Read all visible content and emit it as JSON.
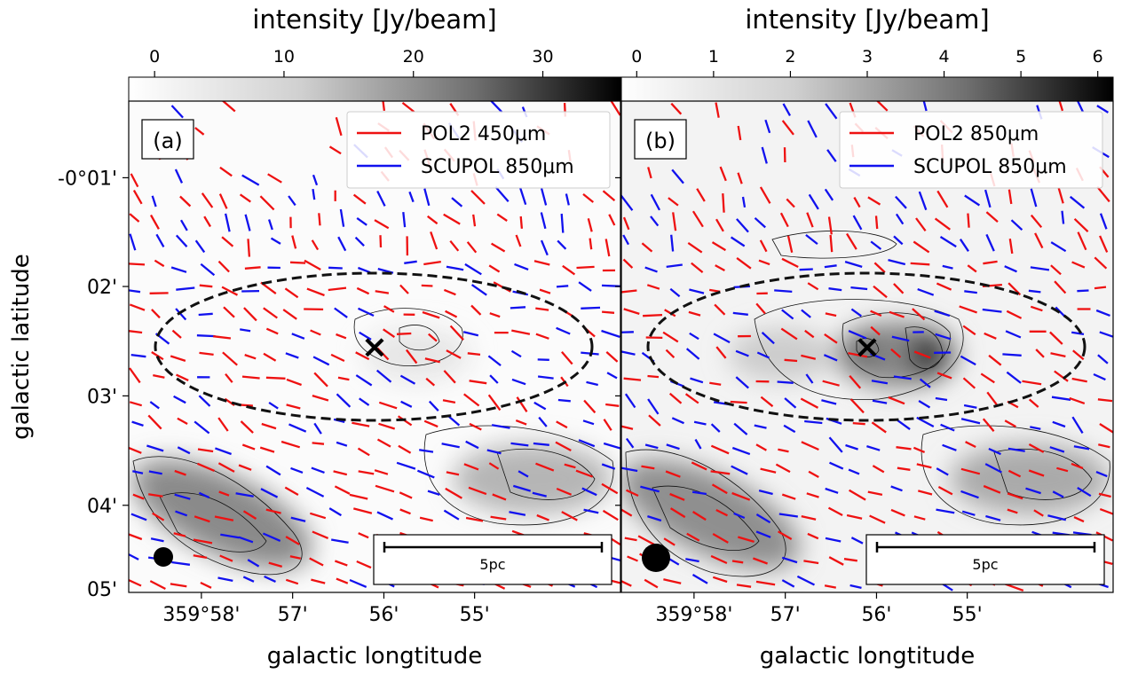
{
  "figure": {
    "ylabel": "galactic latitude",
    "yticks": [
      "-0°01'",
      "02'",
      "03'",
      "04'",
      "05'"
    ],
    "xticks": [
      "359°58'",
      "57'",
      "56'",
      "55'"
    ],
    "scalebar_label": "5pc"
  },
  "colors": {
    "pol2": "#ee1111",
    "scupol": "#1111ee",
    "contour": "#111111",
    "ellipse": "#111111"
  },
  "chart_data": [
    {
      "type": "scatter",
      "panel": "(a)",
      "title": "intensity [Jy/beam]",
      "xlabel": "galactic longtitude",
      "ylabel": "galactic latitude",
      "colorbar": {
        "min": -2,
        "max": 36,
        "ticks": [
          0,
          10,
          20,
          30
        ]
      },
      "ylim": [
        -0.08,
        -0.005
      ],
      "xlim": [
        359.98,
        359.89
      ],
      "x_tick_values": [
        359.9667,
        359.95,
        359.9333,
        359.9167
      ],
      "y_tick_values": [
        -0.0167,
        -0.0333,
        -0.05,
        -0.0667,
        -0.0833
      ],
      "legend": {
        "placement": "top-right",
        "entries": [
          "POL2 450μm",
          "SCUPOL 850μm"
        ]
      },
      "marker_label": "×",
      "beam": "small circle, lower-left",
      "grid": false
    },
    {
      "type": "scatter",
      "panel": "(b)",
      "title": "intensity [Jy/beam]",
      "xlabel": "galactic longtitude",
      "colorbar": {
        "min": -0.2,
        "max": 6.2,
        "ticks": [
          0,
          1,
          2,
          3,
          4,
          5,
          6
        ]
      },
      "ylim": [
        -0.08,
        -0.005
      ],
      "xlim": [
        359.98,
        359.89
      ],
      "x_tick_values": [
        359.9667,
        359.95,
        359.9333,
        359.9167
      ],
      "y_tick_values": [
        -0.0167,
        -0.0333,
        -0.05,
        -0.0667,
        -0.0833
      ],
      "legend": {
        "placement": "top-right",
        "entries": [
          "POL2 850μm",
          "SCUPOL 850μm"
        ]
      },
      "marker_label": "×",
      "beam": "larger circle, lower-left",
      "grid": false
    }
  ]
}
